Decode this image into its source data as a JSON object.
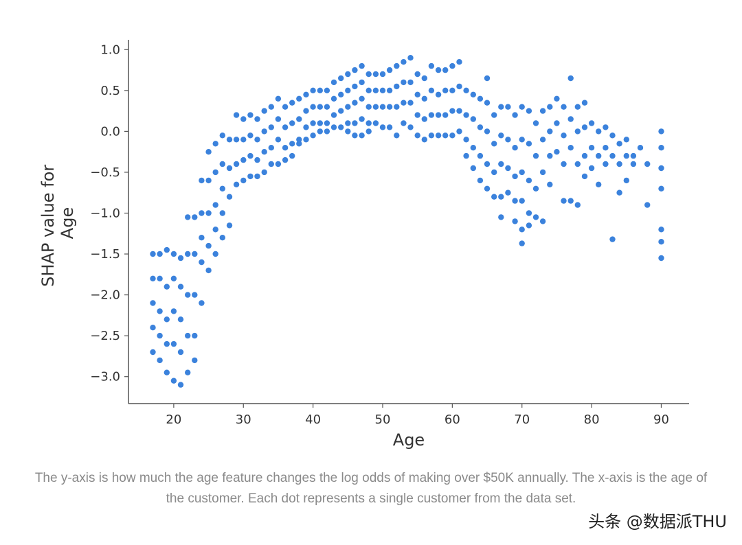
{
  "chart_data": {
    "type": "scatter",
    "xlabel": "Age",
    "ylabel_lines": [
      "SHAP value for",
      "Age"
    ],
    "xlim": [
      13.5,
      94
    ],
    "ylim": [
      -3.33,
      1.12
    ],
    "xticks": [
      20,
      30,
      40,
      50,
      60,
      70,
      80,
      90
    ],
    "yticks": [
      1.0,
      0.5,
      0.0,
      -0.5,
      -1.0,
      -1.5,
      -2.0,
      -2.5,
      -3.0
    ],
    "ytick_labels": [
      "1.0",
      "0.5",
      "0.0",
      "−0.5",
      "−1.0",
      "−1.5",
      "−2.0",
      "−2.5",
      "−3.0"
    ],
    "color": "#3b82dc",
    "grid": false,
    "series": [
      {
        "points": [
          [
            17,
            -1.5
          ],
          [
            17,
            -1.8
          ],
          [
            17,
            -2.1
          ],
          [
            17,
            -2.4
          ],
          [
            17,
            -2.7
          ],
          [
            18,
            -1.5
          ],
          [
            18,
            -1.8
          ],
          [
            18,
            -2.2
          ],
          [
            18,
            -2.5
          ],
          [
            18,
            -2.8
          ],
          [
            19,
            -1.45
          ],
          [
            19,
            -1.9
          ],
          [
            19,
            -2.3
          ],
          [
            19,
            -2.6
          ],
          [
            19,
            -2.95
          ],
          [
            20,
            -1.5
          ],
          [
            20,
            -1.8
          ],
          [
            20,
            -2.2
          ],
          [
            20,
            -2.6
          ],
          [
            20,
            -3.05
          ],
          [
            21,
            -1.55
          ],
          [
            21,
            -1.9
          ],
          [
            21,
            -2.3
          ],
          [
            21,
            -2.7
          ],
          [
            21,
            -3.1
          ],
          [
            22,
            -1.05
          ],
          [
            22,
            -1.5
          ],
          [
            22,
            -2.0
          ],
          [
            22,
            -2.5
          ],
          [
            22,
            -2.95
          ],
          [
            23,
            -1.05
          ],
          [
            23,
            -1.5
          ],
          [
            23,
            -2.0
          ],
          [
            23,
            -2.5
          ],
          [
            23,
            -2.8
          ],
          [
            24,
            -0.6
          ],
          [
            24,
            -1.0
          ],
          [
            24,
            -1.3
          ],
          [
            24,
            -1.6
          ],
          [
            24,
            -2.1
          ],
          [
            25,
            -0.25
          ],
          [
            25,
            -0.6
          ],
          [
            25,
            -1.0
          ],
          [
            25,
            -1.4
          ],
          [
            25,
            -1.7
          ],
          [
            26,
            -0.15
          ],
          [
            26,
            -0.5
          ],
          [
            26,
            -0.9
          ],
          [
            26,
            -1.2
          ],
          [
            26,
            -1.5
          ],
          [
            27,
            -0.05
          ],
          [
            27,
            -0.4
          ],
          [
            27,
            -0.7
          ],
          [
            27,
            -1.0
          ],
          [
            27,
            -1.3
          ],
          [
            28,
            -0.1
          ],
          [
            28,
            -0.45
          ],
          [
            28,
            -0.8
          ],
          [
            28,
            -1.15
          ],
          [
            29,
            0.2
          ],
          [
            29,
            -0.1
          ],
          [
            29,
            -0.4
          ],
          [
            29,
            -0.65
          ],
          [
            30,
            0.15
          ],
          [
            30,
            -0.1
          ],
          [
            30,
            -0.35
          ],
          [
            30,
            -0.6
          ],
          [
            31,
            0.2
          ],
          [
            31,
            -0.05
          ],
          [
            31,
            -0.3
          ],
          [
            31,
            -0.55
          ],
          [
            32,
            0.15
          ],
          [
            32,
            -0.1
          ],
          [
            32,
            -0.35
          ],
          [
            32,
            -0.55
          ],
          [
            33,
            0.25
          ],
          [
            33,
            0.0
          ],
          [
            33,
            -0.25
          ],
          [
            33,
            -0.5
          ],
          [
            34,
            0.3
          ],
          [
            34,
            0.05
          ],
          [
            34,
            -0.2
          ],
          [
            34,
            -0.4
          ],
          [
            35,
            0.4
          ],
          [
            35,
            0.15
          ],
          [
            35,
            -0.1
          ],
          [
            35,
            -0.4
          ],
          [
            36,
            0.3
          ],
          [
            36,
            0.05
          ],
          [
            36,
            -0.2
          ],
          [
            36,
            -0.35
          ],
          [
            37,
            0.35
          ],
          [
            37,
            0.1
          ],
          [
            37,
            -0.15
          ],
          [
            37,
            -0.3
          ],
          [
            38,
            0.4
          ],
          [
            38,
            0.15
          ],
          [
            38,
            -0.1
          ],
          [
            38,
            -0.15
          ],
          [
            39,
            0.45
          ],
          [
            39,
            0.25
          ],
          [
            39,
            0.05
          ],
          [
            39,
            -0.1
          ],
          [
            40,
            0.5
          ],
          [
            40,
            0.3
          ],
          [
            40,
            0.1
          ],
          [
            40,
            -0.05
          ],
          [
            41,
            0.5
          ],
          [
            41,
            0.3
          ],
          [
            41,
            0.1
          ],
          [
            41,
            0.0
          ],
          [
            42,
            0.5
          ],
          [
            42,
            0.3
          ],
          [
            42,
            0.1
          ],
          [
            42,
            0.0
          ],
          [
            43,
            0.6
          ],
          [
            43,
            0.4
          ],
          [
            43,
            0.2
          ],
          [
            43,
            0.05
          ],
          [
            44,
            0.65
          ],
          [
            44,
            0.45
          ],
          [
            44,
            0.25
          ],
          [
            44,
            0.05
          ],
          [
            45,
            0.7
          ],
          [
            45,
            0.5
          ],
          [
            45,
            0.3
          ],
          [
            45,
            0.1
          ],
          [
            45,
            0.0
          ],
          [
            46,
            0.75
          ],
          [
            46,
            0.55
          ],
          [
            46,
            0.35
          ],
          [
            46,
            0.1
          ],
          [
            46,
            -0.05
          ],
          [
            47,
            0.8
          ],
          [
            47,
            0.6
          ],
          [
            47,
            0.4
          ],
          [
            47,
            0.15
          ],
          [
            47,
            -0.05
          ],
          [
            48,
            0.7
          ],
          [
            48,
            0.5
          ],
          [
            48,
            0.3
          ],
          [
            48,
            0.1
          ],
          [
            48,
            0.0
          ],
          [
            49,
            0.7
          ],
          [
            49,
            0.5
          ],
          [
            49,
            0.3
          ],
          [
            49,
            0.1
          ],
          [
            50,
            0.7
          ],
          [
            50,
            0.5
          ],
          [
            50,
            0.3
          ],
          [
            50,
            0.05
          ],
          [
            51,
            0.75
          ],
          [
            51,
            0.5
          ],
          [
            51,
            0.3
          ],
          [
            51,
            0.05
          ],
          [
            52,
            0.8
          ],
          [
            52,
            0.55
          ],
          [
            52,
            0.3
          ],
          [
            52,
            -0.05
          ],
          [
            53,
            0.85
          ],
          [
            53,
            0.6
          ],
          [
            53,
            0.35
          ],
          [
            53,
            0.1
          ],
          [
            54,
            0.9
          ],
          [
            54,
            0.6
          ],
          [
            54,
            0.35
          ],
          [
            54,
            0.05
          ],
          [
            55,
            0.7
          ],
          [
            55,
            0.45
          ],
          [
            55,
            0.2
          ],
          [
            55,
            -0.05
          ],
          [
            56,
            0.65
          ],
          [
            56,
            0.4
          ],
          [
            56,
            0.15
          ],
          [
            56,
            -0.1
          ],
          [
            57,
            0.8
          ],
          [
            57,
            0.5
          ],
          [
            57,
            0.2
          ],
          [
            57,
            -0.05
          ],
          [
            58,
            0.75
          ],
          [
            58,
            0.45
          ],
          [
            58,
            0.2
          ],
          [
            58,
            -0.05
          ],
          [
            59,
            0.75
          ],
          [
            59,
            0.5
          ],
          [
            59,
            0.2
          ],
          [
            59,
            -0.05
          ],
          [
            60,
            0.8
          ],
          [
            60,
            0.5
          ],
          [
            60,
            0.25
          ],
          [
            60,
            -0.05
          ],
          [
            61,
            0.85
          ],
          [
            61,
            0.55
          ],
          [
            61,
            0.25
          ],
          [
            61,
            0.0
          ],
          [
            62,
            0.5
          ],
          [
            62,
            0.2
          ],
          [
            62,
            -0.1
          ],
          [
            62,
            -0.3
          ],
          [
            63,
            0.45
          ],
          [
            63,
            0.15
          ],
          [
            63,
            -0.2
          ],
          [
            63,
            -0.45
          ],
          [
            64,
            0.4
          ],
          [
            64,
            0.05
          ],
          [
            64,
            -0.3
          ],
          [
            64,
            -0.6
          ],
          [
            65,
            0.65
          ],
          [
            65,
            0.35
          ],
          [
            65,
            0.0
          ],
          [
            65,
            -0.4
          ],
          [
            65,
            -0.7
          ],
          [
            66,
            0.2
          ],
          [
            66,
            -0.15
          ],
          [
            66,
            -0.5
          ],
          [
            66,
            -0.8
          ],
          [
            67,
            0.3
          ],
          [
            67,
            -0.05
          ],
          [
            67,
            -0.4
          ],
          [
            67,
            -0.8
          ],
          [
            67,
            -1.05
          ],
          [
            68,
            0.3
          ],
          [
            68,
            -0.1
          ],
          [
            68,
            -0.45
          ],
          [
            68,
            -0.75
          ],
          [
            69,
            0.2
          ],
          [
            69,
            -0.2
          ],
          [
            69,
            -0.55
          ],
          [
            69,
            -0.85
          ],
          [
            69,
            -1.1
          ],
          [
            70,
            0.3
          ],
          [
            70,
            -0.1
          ],
          [
            70,
            -0.5
          ],
          [
            70,
            -0.85
          ],
          [
            70,
            -1.2
          ],
          [
            70,
            -1.37
          ],
          [
            71,
            0.25
          ],
          [
            71,
            -0.15
          ],
          [
            71,
            -0.6
          ],
          [
            71,
            -1.0
          ],
          [
            71,
            -1.15
          ],
          [
            72,
            0.1
          ],
          [
            72,
            -0.3
          ],
          [
            72,
            -0.7
          ],
          [
            72,
            -1.05
          ],
          [
            73,
            0.25
          ],
          [
            73,
            -0.1
          ],
          [
            73,
            -0.5
          ],
          [
            73,
            -1.1
          ],
          [
            74,
            0.3
          ],
          [
            74,
            0.0
          ],
          [
            74,
            -0.3
          ],
          [
            74,
            -0.65
          ],
          [
            75,
            0.4
          ],
          [
            75,
            0.1
          ],
          [
            75,
            -0.25
          ],
          [
            76,
            0.3
          ],
          [
            76,
            -0.05
          ],
          [
            76,
            -0.4
          ],
          [
            76,
            -0.85
          ],
          [
            77,
            0.65
          ],
          [
            77,
            0.15
          ],
          [
            77,
            -0.2
          ],
          [
            77,
            -0.85
          ],
          [
            78,
            0.3
          ],
          [
            78,
            0.0
          ],
          [
            78,
            -0.4
          ],
          [
            78,
            -0.9
          ],
          [
            79,
            0.35
          ],
          [
            79,
            0.05
          ],
          [
            79,
            -0.3
          ],
          [
            79,
            -0.55
          ],
          [
            80,
            0.1
          ],
          [
            80,
            -0.2
          ],
          [
            80,
            -0.45
          ],
          [
            81,
            0.0
          ],
          [
            81,
            -0.3
          ],
          [
            81,
            -0.65
          ],
          [
            82,
            0.05
          ],
          [
            82,
            -0.2
          ],
          [
            82,
            -0.4
          ],
          [
            83,
            -0.05
          ],
          [
            83,
            -0.3
          ],
          [
            83,
            -1.32
          ],
          [
            84,
            -0.15
          ],
          [
            84,
            -0.4
          ],
          [
            84,
            -0.75
          ],
          [
            85,
            -0.1
          ],
          [
            85,
            -0.3
          ],
          [
            85,
            -0.6
          ],
          [
            86,
            -0.3
          ],
          [
            86,
            -0.4
          ],
          [
            87,
            -0.2
          ],
          [
            88,
            -0.4
          ],
          [
            88,
            -0.9
          ],
          [
            90,
            0.0
          ],
          [
            90,
            -0.2
          ],
          [
            90,
            -0.45
          ],
          [
            90,
            -0.7
          ],
          [
            90,
            -1.2
          ],
          [
            90,
            -1.35
          ],
          [
            90,
            -1.55
          ]
        ]
      }
    ]
  },
  "caption": "The y-axis is how much the age feature changes the log odds of making over $50K annually. The x-axis is the age of the customer. Each dot represents a single customer from the data set.",
  "watermark": "头条 @数据派THU"
}
